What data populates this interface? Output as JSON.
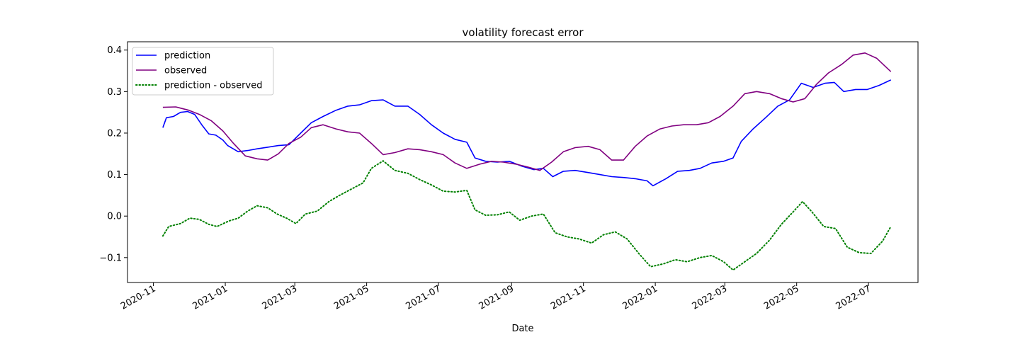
{
  "chart_data": {
    "type": "line",
    "title": "volatility forecast error",
    "xlabel": "Date",
    "ylabel": "",
    "xlim": [
      "2020-10-10",
      "2022-08-12"
    ],
    "ylim": [
      -0.16,
      0.42
    ],
    "x_ticks": [
      "2020-11-01",
      "2021-01-01",
      "2021-03-01",
      "2021-05-01",
      "2021-07-01",
      "2021-09-01",
      "2021-11-01",
      "2022-01-01",
      "2022-03-01",
      "2022-05-01",
      "2022-07-01"
    ],
    "x_tick_labels": [
      "2020-11",
      "2021-01",
      "2021-03",
      "2021-05",
      "2021-07",
      "2021-09",
      "2021-11",
      "2022-01",
      "2022-03",
      "2022-05",
      "2022-07"
    ],
    "y_ticks": [
      -0.1,
      0.0,
      0.1,
      0.2,
      0.3,
      0.4
    ],
    "y_tick_labels": [
      "−0.1",
      "0.0",
      "0.1",
      "0.2",
      "0.3",
      "0.4"
    ],
    "legend_position": "top-left",
    "grid": false,
    "series": [
      {
        "name": "prediction",
        "color": "#0000ff",
        "style": "solid",
        "points": [
          [
            "2020-11-09",
            0.213
          ],
          [
            "2020-11-12",
            0.237
          ],
          [
            "2020-11-18",
            0.24
          ],
          [
            "2020-11-24",
            0.25
          ],
          [
            "2020-11-30",
            0.252
          ],
          [
            "2020-12-06",
            0.245
          ],
          [
            "2020-12-12",
            0.22
          ],
          [
            "2020-12-18",
            0.198
          ],
          [
            "2020-12-24",
            0.195
          ],
          [
            "2020-12-30",
            0.183
          ],
          [
            "2021-01-03",
            0.17
          ],
          [
            "2021-01-12",
            0.155
          ],
          [
            "2021-01-20",
            0.158
          ],
          [
            "2021-01-28",
            0.162
          ],
          [
            "2021-02-06",
            0.166
          ],
          [
            "2021-02-15",
            0.17
          ],
          [
            "2021-02-24",
            0.172
          ],
          [
            "2021-03-06",
            0.2
          ],
          [
            "2021-03-15",
            0.225
          ],
          [
            "2021-03-25",
            0.24
          ],
          [
            "2021-04-05",
            0.255
          ],
          [
            "2021-04-15",
            0.265
          ],
          [
            "2021-04-25",
            0.268
          ],
          [
            "2021-05-05",
            0.278
          ],
          [
            "2021-05-15",
            0.28
          ],
          [
            "2021-05-25",
            0.265
          ],
          [
            "2021-06-05",
            0.265
          ],
          [
            "2021-06-15",
            0.245
          ],
          [
            "2021-06-25",
            0.22
          ],
          [
            "2021-07-05",
            0.2
          ],
          [
            "2021-07-15",
            0.185
          ],
          [
            "2021-07-25",
            0.178
          ],
          [
            "2021-08-01",
            0.14
          ],
          [
            "2021-08-10",
            0.132
          ],
          [
            "2021-08-20",
            0.13
          ],
          [
            "2021-08-30",
            0.132
          ],
          [
            "2021-09-10",
            0.12
          ],
          [
            "2021-09-20",
            0.112
          ],
          [
            "2021-09-28",
            0.115
          ],
          [
            "2021-10-06",
            0.095
          ],
          [
            "2021-10-15",
            0.108
          ],
          [
            "2021-10-25",
            0.11
          ],
          [
            "2021-11-05",
            0.105
          ],
          [
            "2021-11-15",
            0.1
          ],
          [
            "2021-11-25",
            0.095
          ],
          [
            "2021-12-05",
            0.093
          ],
          [
            "2021-12-15",
            0.09
          ],
          [
            "2021-12-25",
            0.085
          ],
          [
            "2021-12-30",
            0.073
          ],
          [
            "2022-01-10",
            0.09
          ],
          [
            "2022-01-20",
            0.108
          ],
          [
            "2022-01-30",
            0.11
          ],
          [
            "2022-02-08",
            0.115
          ],
          [
            "2022-02-18",
            0.128
          ],
          [
            "2022-02-28",
            0.132
          ],
          [
            "2022-03-08",
            0.14
          ],
          [
            "2022-03-15",
            0.18
          ],
          [
            "2022-03-25",
            0.21
          ],
          [
            "2022-04-05",
            0.238
          ],
          [
            "2022-04-15",
            0.265
          ],
          [
            "2022-04-25",
            0.28
          ],
          [
            "2022-05-05",
            0.32
          ],
          [
            "2022-05-15",
            0.31
          ],
          [
            "2022-05-25",
            0.32
          ],
          [
            "2022-06-02",
            0.322
          ],
          [
            "2022-06-10",
            0.3
          ],
          [
            "2022-06-20",
            0.305
          ],
          [
            "2022-06-30",
            0.305
          ],
          [
            "2022-07-10",
            0.315
          ],
          [
            "2022-07-20",
            0.328
          ]
        ]
      },
      {
        "name": "observed",
        "color": "#800080",
        "style": "solid",
        "points": [
          [
            "2020-11-09",
            0.262
          ],
          [
            "2020-11-20",
            0.263
          ],
          [
            "2020-12-01",
            0.255
          ],
          [
            "2020-12-10",
            0.245
          ],
          [
            "2020-12-20",
            0.23
          ],
          [
            "2020-12-30",
            0.205
          ],
          [
            "2021-01-08",
            0.175
          ],
          [
            "2021-01-18",
            0.145
          ],
          [
            "2021-01-28",
            0.138
          ],
          [
            "2021-02-06",
            0.135
          ],
          [
            "2021-02-15",
            0.15
          ],
          [
            "2021-02-24",
            0.175
          ],
          [
            "2021-03-06",
            0.19
          ],
          [
            "2021-03-15",
            0.213
          ],
          [
            "2021-03-25",
            0.22
          ],
          [
            "2021-04-05",
            0.21
          ],
          [
            "2021-04-15",
            0.203
          ],
          [
            "2021-04-25",
            0.2
          ],
          [
            "2021-05-05",
            0.175
          ],
          [
            "2021-05-15",
            0.148
          ],
          [
            "2021-05-25",
            0.153
          ],
          [
            "2021-06-05",
            0.162
          ],
          [
            "2021-06-15",
            0.16
          ],
          [
            "2021-06-25",
            0.155
          ],
          [
            "2021-07-05",
            0.148
          ],
          [
            "2021-07-15",
            0.128
          ],
          [
            "2021-07-25",
            0.115
          ],
          [
            "2021-08-05",
            0.125
          ],
          [
            "2021-08-15",
            0.132
          ],
          [
            "2021-08-25",
            0.13
          ],
          [
            "2021-09-05",
            0.125
          ],
          [
            "2021-09-15",
            0.118
          ],
          [
            "2021-09-25",
            0.11
          ],
          [
            "2021-10-05",
            0.13
          ],
          [
            "2021-10-15",
            0.155
          ],
          [
            "2021-10-25",
            0.165
          ],
          [
            "2021-11-05",
            0.168
          ],
          [
            "2021-11-15",
            0.16
          ],
          [
            "2021-11-25",
            0.135
          ],
          [
            "2021-12-05",
            0.135
          ],
          [
            "2021-12-15",
            0.168
          ],
          [
            "2021-12-25",
            0.193
          ],
          [
            "2022-01-05",
            0.21
          ],
          [
            "2022-01-15",
            0.217
          ],
          [
            "2022-01-25",
            0.22
          ],
          [
            "2022-02-05",
            0.22
          ],
          [
            "2022-02-15",
            0.225
          ],
          [
            "2022-02-25",
            0.24
          ],
          [
            "2022-03-08",
            0.265
          ],
          [
            "2022-03-18",
            0.295
          ],
          [
            "2022-03-28",
            0.3
          ],
          [
            "2022-04-08",
            0.295
          ],
          [
            "2022-04-18",
            0.283
          ],
          [
            "2022-04-28",
            0.275
          ],
          [
            "2022-05-08",
            0.283
          ],
          [
            "2022-05-18",
            0.318
          ],
          [
            "2022-05-28",
            0.345
          ],
          [
            "2022-06-08",
            0.365
          ],
          [
            "2022-06-18",
            0.388
          ],
          [
            "2022-06-28",
            0.393
          ],
          [
            "2022-07-08",
            0.38
          ],
          [
            "2022-07-20",
            0.348
          ]
        ]
      },
      {
        "name": "prediction - observed",
        "color": "#008000",
        "style": "dotted",
        "points": [
          [
            "2020-11-09",
            -0.048
          ],
          [
            "2020-11-14",
            -0.025
          ],
          [
            "2020-11-24",
            -0.018
          ],
          [
            "2020-12-02",
            -0.005
          ],
          [
            "2020-12-10",
            -0.008
          ],
          [
            "2020-12-18",
            -0.02
          ],
          [
            "2020-12-25",
            -0.025
          ],
          [
            "2021-01-04",
            -0.012
          ],
          [
            "2021-01-12",
            -0.005
          ],
          [
            "2021-01-20",
            0.012
          ],
          [
            "2021-01-28",
            0.025
          ],
          [
            "2021-02-06",
            0.02
          ],
          [
            "2021-02-14",
            0.005
          ],
          [
            "2021-02-22",
            -0.005
          ],
          [
            "2021-03-02",
            -0.018
          ],
          [
            "2021-03-10",
            0.005
          ],
          [
            "2021-03-20",
            0.012
          ],
          [
            "2021-03-30",
            0.035
          ],
          [
            "2021-04-08",
            0.05
          ],
          [
            "2021-04-18",
            0.065
          ],
          [
            "2021-04-28",
            0.08
          ],
          [
            "2021-05-05",
            0.115
          ],
          [
            "2021-05-15",
            0.133
          ],
          [
            "2021-05-25",
            0.11
          ],
          [
            "2021-06-05",
            0.103
          ],
          [
            "2021-06-15",
            0.088
          ],
          [
            "2021-06-25",
            0.075
          ],
          [
            "2021-07-05",
            0.06
          ],
          [
            "2021-07-15",
            0.058
          ],
          [
            "2021-07-25",
            0.062
          ],
          [
            "2021-08-01",
            0.015
          ],
          [
            "2021-08-10",
            0.002
          ],
          [
            "2021-08-20",
            0.003
          ],
          [
            "2021-08-30",
            0.01
          ],
          [
            "2021-09-08",
            -0.01
          ],
          [
            "2021-09-18",
            0.0
          ],
          [
            "2021-09-28",
            0.005
          ],
          [
            "2021-10-08",
            -0.04
          ],
          [
            "2021-10-18",
            -0.05
          ],
          [
            "2021-10-28",
            -0.055
          ],
          [
            "2021-11-08",
            -0.065
          ],
          [
            "2021-11-18",
            -0.045
          ],
          [
            "2021-11-28",
            -0.038
          ],
          [
            "2021-12-08",
            -0.055
          ],
          [
            "2021-12-18",
            -0.09
          ],
          [
            "2021-12-28",
            -0.122
          ],
          [
            "2022-01-08",
            -0.115
          ],
          [
            "2022-01-18",
            -0.105
          ],
          [
            "2022-01-28",
            -0.11
          ],
          [
            "2022-02-08",
            -0.1
          ],
          [
            "2022-02-18",
            -0.095
          ],
          [
            "2022-02-28",
            -0.11
          ],
          [
            "2022-03-08",
            -0.13
          ],
          [
            "2022-03-18",
            -0.11
          ],
          [
            "2022-03-28",
            -0.09
          ],
          [
            "2022-04-08",
            -0.058
          ],
          [
            "2022-04-18",
            -0.02
          ],
          [
            "2022-04-28",
            0.01
          ],
          [
            "2022-05-06",
            0.035
          ],
          [
            "2022-05-14",
            0.01
          ],
          [
            "2022-05-24",
            -0.025
          ],
          [
            "2022-06-03",
            -0.03
          ],
          [
            "2022-06-13",
            -0.075
          ],
          [
            "2022-06-23",
            -0.088
          ],
          [
            "2022-07-03",
            -0.09
          ],
          [
            "2022-07-13",
            -0.06
          ],
          [
            "2022-07-20",
            -0.025
          ]
        ]
      }
    ]
  }
}
